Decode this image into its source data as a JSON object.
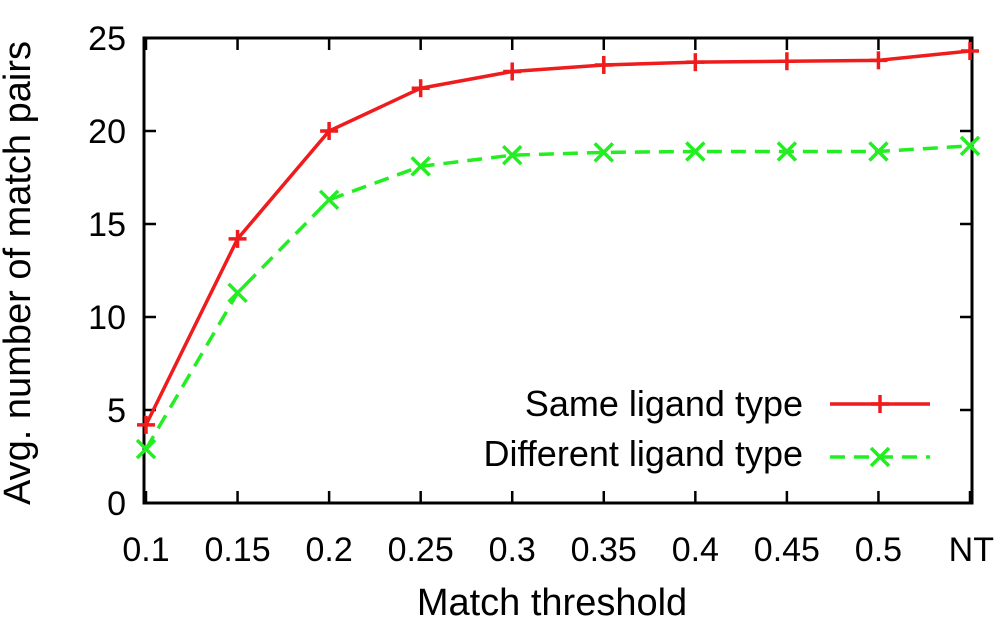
{
  "chart_data": {
    "type": "line",
    "title": "",
    "xlabel": "Match threshold",
    "ylabel": "Avg. number of match pairs",
    "categories": [
      "0.1",
      "0.15",
      "0.2",
      "0.25",
      "0.3",
      "0.35",
      "0.4",
      "0.45",
      "0.5",
      "NT"
    ],
    "ylim": [
      0,
      25
    ],
    "yticks": [
      "0",
      "5",
      "10",
      "15",
      "20",
      "25"
    ],
    "grid": false,
    "legend_position": "bottom-right",
    "series": [
      {
        "name": "Same ligand type",
        "color": "#ee1c1c",
        "line_style": "solid",
        "marker": "plus",
        "values": [
          4.2,
          14.2,
          20.0,
          22.3,
          23.2,
          23.55,
          23.7,
          23.75,
          23.8,
          24.3
        ]
      },
      {
        "name": "Different ligand type",
        "color": "#22ee22",
        "line_style": "dashed",
        "marker": "x",
        "values": [
          2.9,
          11.3,
          16.3,
          18.1,
          18.7,
          18.85,
          18.9,
          18.9,
          18.9,
          19.2
        ]
      }
    ]
  }
}
